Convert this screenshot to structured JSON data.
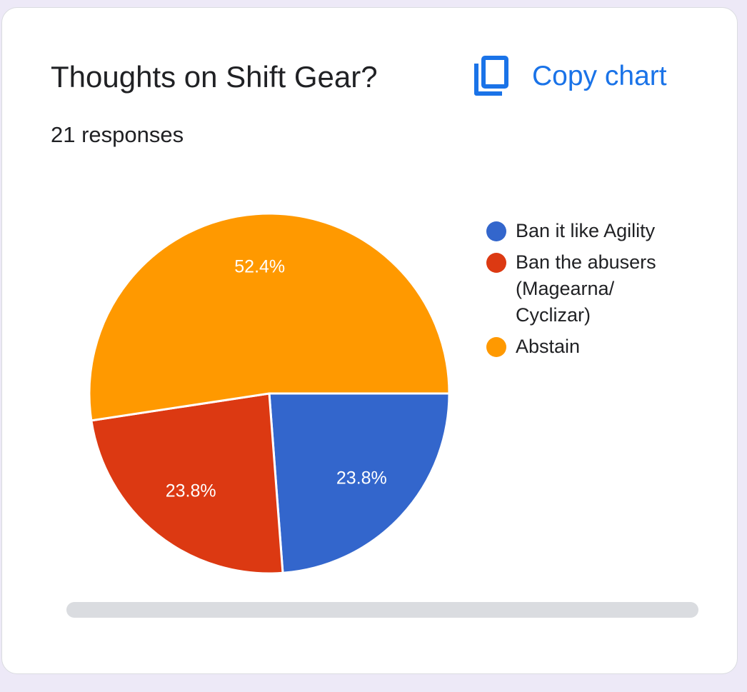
{
  "card": {
    "title": "Thoughts on Shift Gear?",
    "responses": "21 responses",
    "copy_label": "Copy chart",
    "copy_icon": "copy-icon"
  },
  "colors": {
    "accent": "#1a73e8",
    "blue": "#3366cc",
    "red": "#dc3912",
    "orange": "#ff9900"
  },
  "chart_data": {
    "type": "pie",
    "title": "Thoughts on Shift Gear?",
    "legend_position": "right",
    "slices": [
      {
        "label": "Ban it like Agility",
        "value": 23.8,
        "display": "23.8%",
        "color": "#3366cc"
      },
      {
        "label": "Ban the abusers (Magearna/ Cyclizar)",
        "value": 23.8,
        "display": "23.8%",
        "color": "#dc3912"
      },
      {
        "label": "Abstain",
        "value": 52.4,
        "display": "52.4%",
        "color": "#ff9900"
      }
    ]
  }
}
